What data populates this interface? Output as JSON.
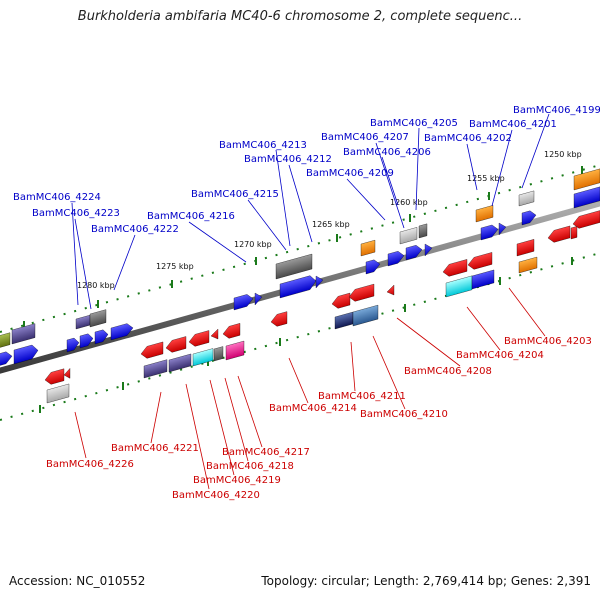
{
  "title": "Burkholderia ambifaria MC40-6 chromosome 2, complete sequenc...",
  "footer": {
    "accession": "Accession: NC_010552",
    "stats": "Topology: circular; Length: 2,769,414 bp; Genes: 2,391"
  },
  "colors": {
    "upper_label": "#0000c8",
    "lower_label": "#cc0000",
    "backbone": "#6e6e6e",
    "tick": "#1a7a1a"
  },
  "scale_labels": [
    "1250 kbp",
    "1255 kbp",
    "1260 kbp",
    "1265 kbp",
    "1270 kbp",
    "1275 kbp",
    "1280 kbp"
  ],
  "upper_labels": [
    "BamMC406_4199",
    "BamMC406_4201",
    "BamMC406_4202",
    "BamMC406_4205",
    "BamMC406_4207",
    "BamMC406_4206",
    "BamMC406_4209",
    "BamMC406_4213",
    "BamMC406_4212",
    "BamMC406_4215",
    "BamMC406_4216",
    "BamMC406_4224",
    "BamMC406_4223",
    "BamMC406_4222"
  ],
  "lower_labels": [
    "BamMC406_4203",
    "BamMC406_4204",
    "BamMC406_4208",
    "BamMC406_4211",
    "BamMC406_4210",
    "BamMC406_4214",
    "BamMC406_4221",
    "BamMC406_4217",
    "BamMC406_4218",
    "BamMC406_4219",
    "BamMC406_4220",
    "BamMC406_4226"
  ]
}
